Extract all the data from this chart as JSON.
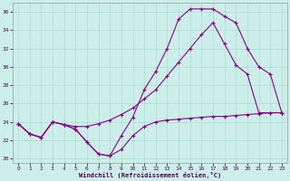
{
  "xlabel": "Windchill (Refroidissement éolien,°C)",
  "background_color": "#cceee8",
  "grid_color": "#aaddcc",
  "line_color": "#880088",
  "xlim": [
    -0.5,
    23.5
  ],
  "ylim": [
    19.5,
    37.0
  ],
  "xticks": [
    0,
    1,
    2,
    3,
    4,
    5,
    6,
    7,
    8,
    9,
    10,
    11,
    12,
    13,
    14,
    15,
    16,
    17,
    18,
    19,
    20,
    21,
    22,
    23
  ],
  "yticks": [
    20,
    22,
    24,
    26,
    28,
    30,
    32,
    34,
    36
  ],
  "line1_x": [
    0,
    1,
    2,
    3,
    4,
    5,
    6,
    7,
    8,
    9,
    10,
    11,
    12,
    13,
    14,
    15,
    16,
    17,
    18,
    19,
    20,
    21,
    22,
    23
  ],
  "line1_y": [
    23.8,
    22.7,
    22.3,
    24.0,
    23.7,
    23.2,
    21.8,
    20.5,
    20.3,
    21.0,
    22.5,
    23.5,
    24.0,
    24.2,
    24.3,
    24.4,
    24.5,
    24.6,
    24.6,
    24.7,
    24.8,
    24.9,
    25.0,
    25.0
  ],
  "line2_x": [
    0,
    1,
    2,
    3,
    4,
    5,
    6,
    7,
    8,
    9,
    10,
    11,
    12,
    13,
    14,
    15,
    16,
    17,
    18,
    19,
    20,
    21,
    22,
    23
  ],
  "line2_y": [
    23.8,
    22.7,
    22.3,
    24.0,
    23.7,
    23.2,
    21.8,
    20.5,
    20.3,
    22.5,
    24.5,
    27.5,
    29.5,
    32.0,
    35.2,
    36.3,
    36.3,
    36.3,
    35.5,
    34.8,
    32.0,
    30.0,
    29.2,
    25.0
  ],
  "line3_x": [
    0,
    1,
    2,
    3,
    4,
    5,
    6,
    7,
    8,
    9,
    10,
    11,
    12,
    13,
    14,
    15,
    16,
    17,
    18,
    19,
    20,
    21,
    22,
    23
  ],
  "line3_y": [
    23.8,
    22.7,
    22.3,
    24.0,
    23.7,
    23.5,
    23.5,
    23.8,
    24.2,
    24.8,
    25.5,
    26.5,
    27.5,
    29.0,
    30.5,
    32.0,
    33.5,
    34.8,
    32.5,
    30.2,
    29.2,
    25.0,
    25.0,
    25.0
  ]
}
